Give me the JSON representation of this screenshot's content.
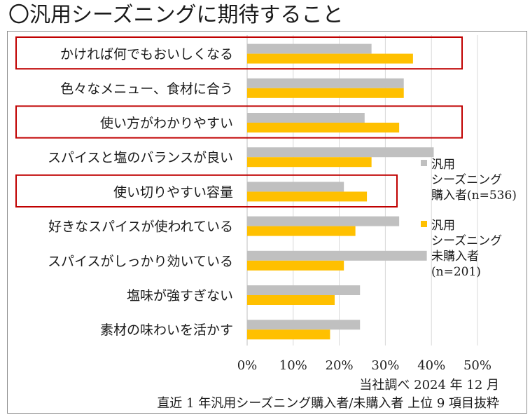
{
  "title": "〇汎用シーズニングに期待すること",
  "source_line1": "当社調べ 2024 年 12 月",
  "source_line2": "直近 1 年汎用シーズニング購入者/未購入者 上位 9 項目抜粋",
  "colors": {
    "purchasers": "#c0c0c0",
    "non_purchasers": "#ffc000",
    "highlight_box": "#c00000",
    "grid": "#d9d9d9"
  },
  "legend": [
    {
      "lines": [
        "汎用",
        "シーズニング",
        "購入者(n=536)"
      ]
    },
    {
      "lines": [
        "汎用",
        "シーズニング",
        "未購入者",
        "(n=201)"
      ]
    }
  ],
  "chart_data": {
    "type": "bar",
    "orientation": "horizontal",
    "xlim": [
      0,
      50
    ],
    "xticks": [
      "0%",
      "10%",
      "20%",
      "30%",
      "40%",
      "50%"
    ],
    "grid": true,
    "legend_position": "right",
    "categories": [
      "かければ何でもおいしくなる",
      "色々なメニュー、食材に合う",
      "使い方がわかりやすい",
      "スパイスと塩のバランスが良い",
      "使い切りやすい容量",
      "好きなスパイスが使われている",
      "スパイスがしっかり効いている",
      "塩味が強すぎない",
      "素材の味わいを活かす"
    ],
    "series": [
      {
        "name": "汎用シーズニング購入者(n=536)",
        "values": [
          27,
          34,
          25.5,
          40.5,
          21,
          33,
          39,
          24.5,
          24.5
        ]
      },
      {
        "name": "汎用シーズニング未購入者(n=201)",
        "values": [
          36,
          34,
          33,
          27,
          26,
          23.5,
          21,
          19,
          18
        ]
      }
    ],
    "highlighted": [
      0,
      2,
      4
    ]
  }
}
